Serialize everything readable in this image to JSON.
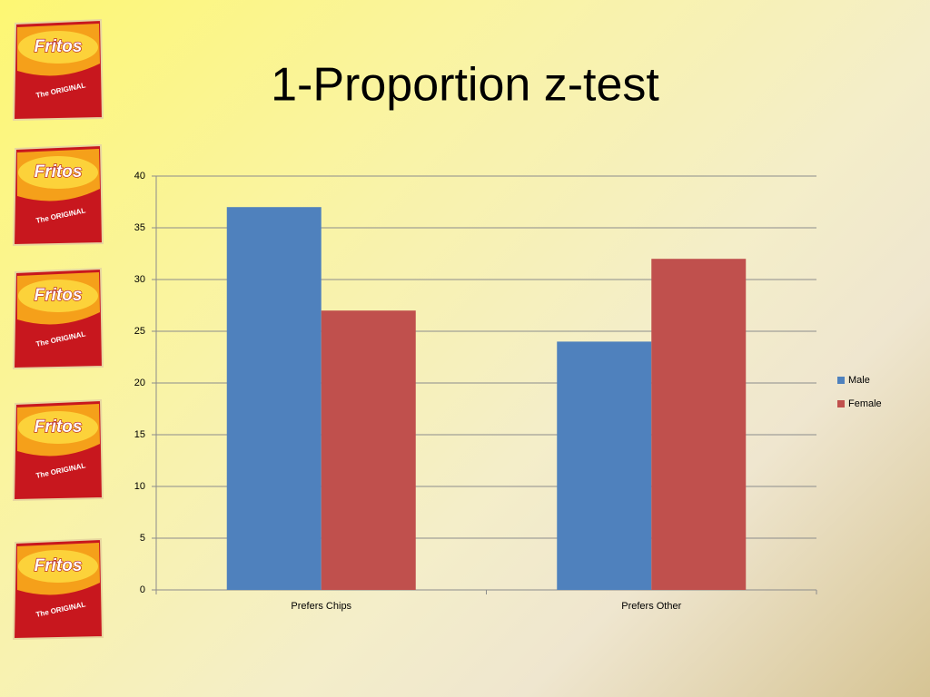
{
  "bag_text": {
    "brand": "Fritos",
    "tagline": "The ORIGINAL"
  },
  "chart_data": {
    "type": "bar",
    "title": "1-Proportion z-test",
    "categories": [
      "Prefers Chips",
      "Prefers Other"
    ],
    "series": [
      {
        "name": "Male",
        "color": "#4f81bd",
        "values": [
          37,
          24
        ]
      },
      {
        "name": "Female",
        "color": "#c0504d",
        "values": [
          27,
          32
        ]
      }
    ],
    "ylim": [
      0,
      40
    ],
    "yticks": [
      0,
      5,
      10,
      15,
      20,
      25,
      30,
      35,
      40
    ],
    "grid": true,
    "legend": "right"
  }
}
